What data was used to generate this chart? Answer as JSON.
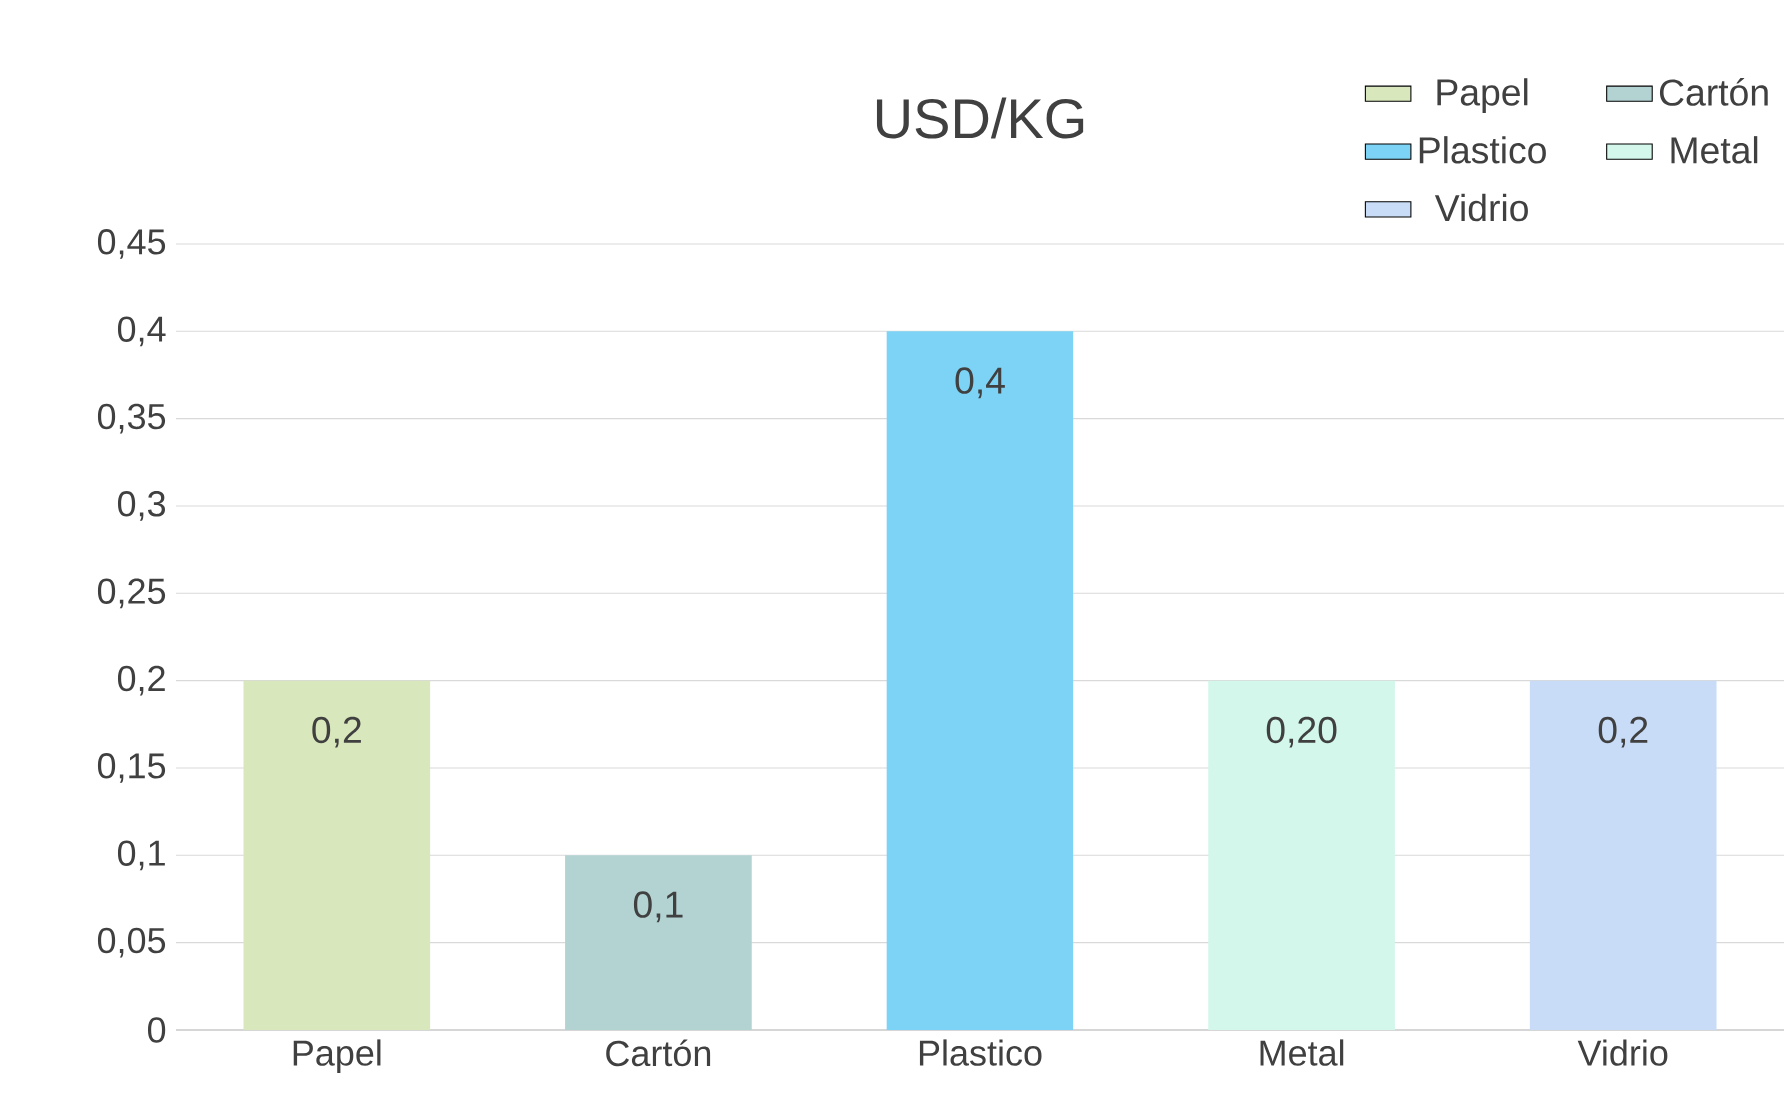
{
  "chart_data": {
    "type": "bar",
    "title": "USD/KG",
    "stacked": true,
    "categories": [
      "Papel",
      "Cartón",
      "Plastico",
      "Metal",
      "Vidrio"
    ],
    "series": [
      {
        "name": "Papel",
        "color": "#d9e8bc",
        "values": [
          0.2,
          null,
          null,
          null,
          null
        ],
        "value_labels": [
          "0,2",
          null,
          null,
          null,
          null
        ]
      },
      {
        "name": "Cartón",
        "color": "#b3d3d3",
        "values": [
          null,
          0.1,
          null,
          null,
          null
        ],
        "value_labels": [
          null,
          "0,1",
          null,
          null,
          null
        ]
      },
      {
        "name": "Plastico",
        "color": "#7dd3f5",
        "values": [
          null,
          null,
          0.4,
          null,
          null
        ],
        "value_labels": [
          null,
          null,
          "0,4",
          null,
          null
        ]
      },
      {
        "name": "Metal",
        "color": "#d3f7ea",
        "values": [
          null,
          null,
          null,
          0.2,
          null
        ],
        "value_labels": [
          null,
          null,
          null,
          "0,20",
          null
        ]
      },
      {
        "name": "Vidrio",
        "color": "#c9dcf7",
        "values": [
          null,
          null,
          null,
          null,
          0.2
        ],
        "value_labels": [
          null,
          null,
          null,
          null,
          "0,2"
        ]
      }
    ],
    "ylim": [
      0,
      0.45
    ],
    "yticks": [
      0,
      {
        "value": 0.05,
        "label": "0,05"
      },
      {
        "value": 0.1,
        "label": "0,1"
      },
      {
        "value": 0.15,
        "label": "0,15"
      },
      {
        "value": 0.2,
        "label": "0,2"
      },
      {
        "value": 0.25,
        "label": "0,25"
      },
      {
        "value": 0.3,
        "label": "0,3"
      },
      {
        "value": 0.35,
        "label": "0,35"
      },
      {
        "value": 0.4,
        "label": "0,4"
      },
      {
        "value": 0.45,
        "label": "0,45"
      }
    ],
    "grid": "y",
    "legend": "top right"
  }
}
